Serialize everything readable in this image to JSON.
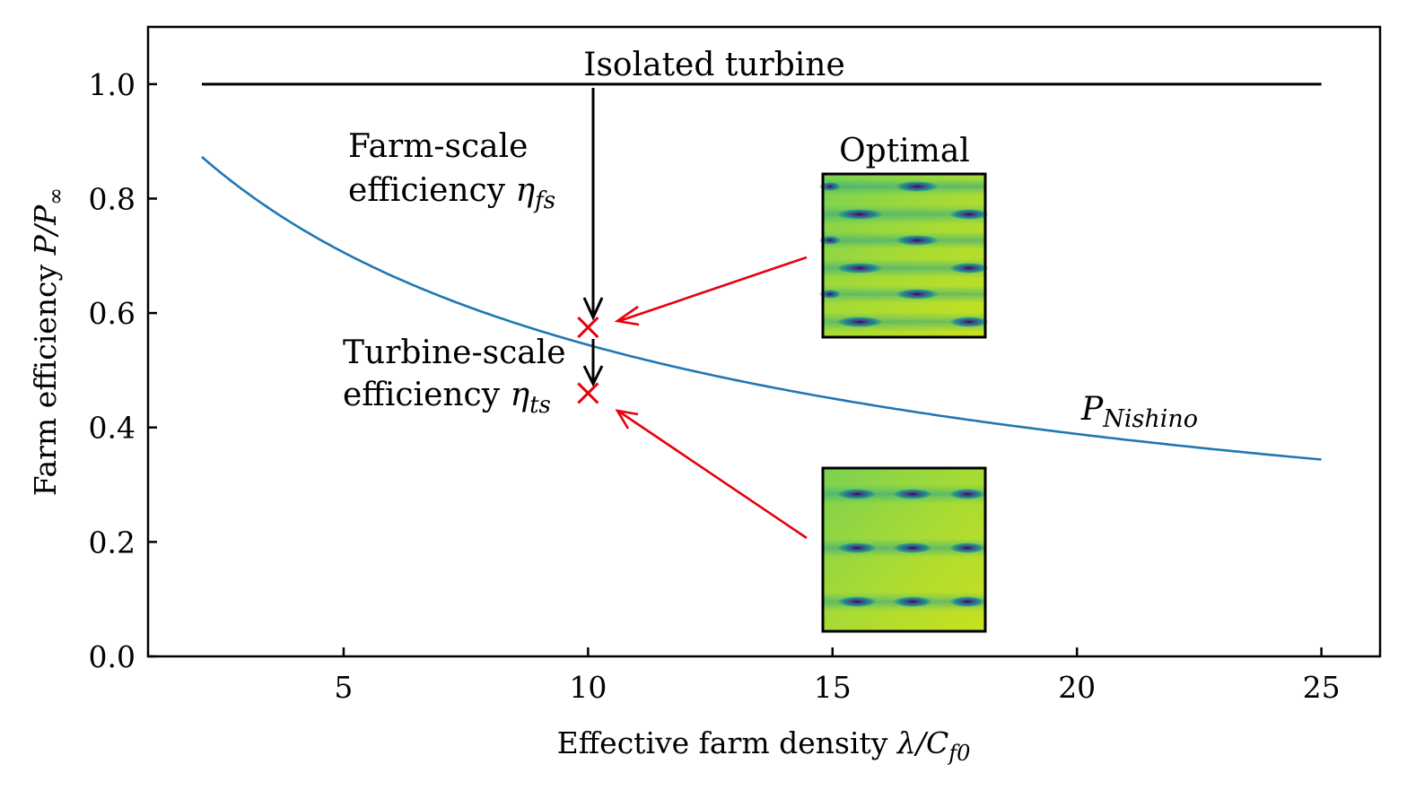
{
  "chart_data": {
    "type": "line",
    "title": "",
    "xlabel": "Effective farm density λ/C_f0",
    "xlabel_parts": {
      "text": "Effective farm density ",
      "math": "λ/C",
      "sub": "f0"
    },
    "ylabel": "Farm efficiency P/P∞",
    "ylabel_parts": {
      "text": "Farm efficiency ",
      "math": "P/P",
      "sub": "∞"
    },
    "xlim": [
      1.0,
      26.2
    ],
    "ylim": [
      0.0,
      1.1
    ],
    "xticks": [
      5,
      10,
      15,
      20,
      25
    ],
    "xtick_labels": [
      "5",
      "10",
      "15",
      "20",
      "25"
    ],
    "yticks": [
      0.0,
      0.2,
      0.4,
      0.6,
      0.8,
      1.0
    ],
    "ytick_labels": [
      "0.0",
      "0.2",
      "0.4",
      "0.6",
      "0.8",
      "1.0"
    ],
    "grid": false,
    "series": [
      {
        "name": "Isolated turbine",
        "color": "#000000",
        "x": [
          2.1,
          25
        ],
        "y": [
          1.0,
          1.0
        ]
      },
      {
        "name": "P_Nishino",
        "label_main": "P",
        "label_sub": "Nishino",
        "color": "#1f77b4",
        "x": [
          2.1,
          3,
          4,
          5,
          6,
          7,
          8,
          9,
          10,
          11,
          12,
          13,
          14,
          15,
          16,
          17,
          18,
          19,
          20,
          21,
          22,
          23,
          24,
          25
        ],
        "y": [
          0.873,
          0.842,
          0.806,
          0.772,
          0.739,
          0.709,
          0.679,
          0.651,
          0.574,
          0.548,
          0.526,
          0.505,
          0.487,
          0.471,
          0.455,
          0.44,
          0.426,
          0.413,
          0.4,
          0.388,
          0.376,
          0.365,
          0.354,
          0.344
        ]
      }
    ],
    "points": [
      {
        "name": "farm-scale-point",
        "x": 10,
        "y": 0.575,
        "marker": "x",
        "color": "#e8000b"
      },
      {
        "name": "turbine-scale-point",
        "x": 10,
        "y": 0.46,
        "marker": "x",
        "color": "#e8000b"
      }
    ],
    "annotations": {
      "isolated_label": "Isolated turbine",
      "farm_scale_line1": "Farm-scale",
      "farm_scale_line2": "efficiency",
      "farm_scale_symbol": "η",
      "farm_scale_sub": "fs",
      "turbine_scale_line1": "Turbine-scale",
      "turbine_scale_line2": "efficiency",
      "turbine_scale_symbol": "η",
      "turbine_scale_sub": "ts",
      "optimal_label": "Optimal"
    },
    "colors": {
      "curve": "#1f77b4",
      "marker": "#e8000b",
      "arrow_red": "#e8000b",
      "axis": "#000000"
    }
  }
}
